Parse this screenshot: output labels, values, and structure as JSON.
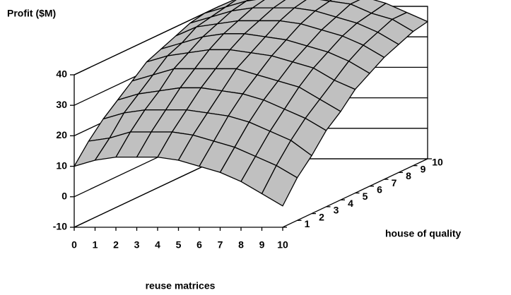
{
  "chart_data": {
    "type": "surface",
    "zlabel": "Profit ($M)",
    "xlabel": "reuse matrices",
    "ylabel": "house of quality",
    "xcategories": [
      "0",
      "1",
      "2",
      "3",
      "4",
      "5",
      "6",
      "7",
      "8",
      "9",
      "10"
    ],
    "ycategories": [
      null,
      "1",
      "2",
      "3",
      "4",
      "5",
      "6",
      "7",
      "8",
      "9",
      "10"
    ],
    "zlim": [
      -10,
      40
    ],
    "zticks": [
      -10,
      0,
      10,
      20,
      30,
      40
    ],
    "color": "#c0c0c0",
    "values": [
      [
        10,
        12,
        13,
        13,
        13,
        12,
        10,
        8,
        5,
        1,
        -3
      ],
      [
        16,
        17,
        19,
        19,
        19,
        18,
        16,
        14,
        11,
        8,
        4
      ],
      [
        21,
        23,
        24,
        24,
        24,
        23,
        22,
        20,
        17,
        14,
        9
      ],
      [
        25,
        27,
        28,
        29,
        29,
        28,
        27,
        25,
        22,
        19,
        15
      ],
      [
        29,
        31,
        33,
        33,
        33,
        33,
        31,
        29,
        27,
        23,
        19
      ],
      [
        33,
        35,
        36,
        37,
        37,
        36,
        35,
        33,
        31,
        27,
        24
      ],
      [
        35,
        37,
        39,
        40,
        40,
        39,
        38,
        36,
        34,
        31,
        27
      ],
      [
        37,
        40,
        41,
        42,
        42,
        42,
        41,
        39,
        37,
        34,
        30
      ],
      [
        39,
        41,
        43,
        44,
        44,
        44,
        43,
        41,
        39,
        36,
        32
      ],
      [
        40,
        42,
        44,
        45,
        45,
        45,
        44,
        43,
        40,
        38,
        34
      ],
      [
        40,
        43,
        44,
        45,
        46,
        46,
        45,
        43,
        41,
        38,
        35
      ]
    ]
  }
}
